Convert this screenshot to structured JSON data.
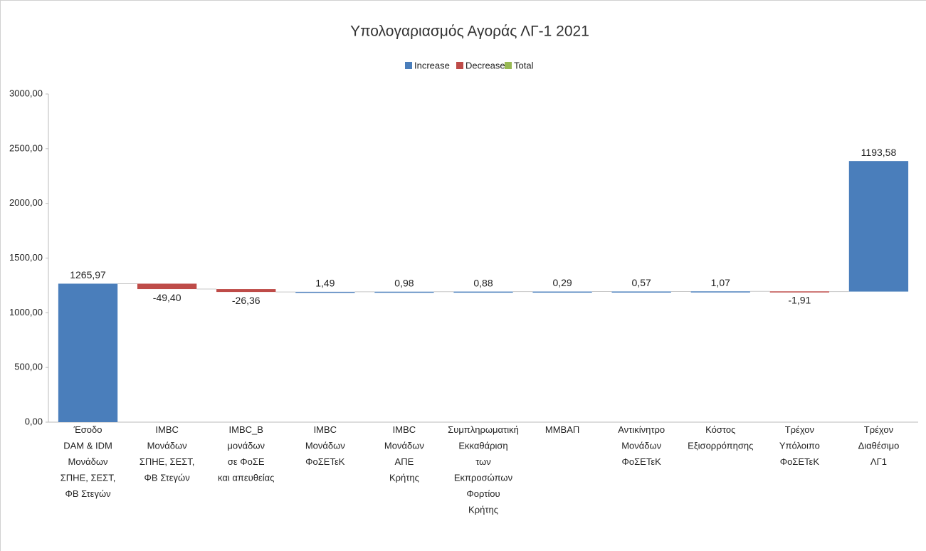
{
  "chart_data": {
    "type": "waterfall",
    "title": "Υπολογαριασμός Αγοράς ΛΓ-1 2021",
    "legend": [
      {
        "name": "Increase",
        "color": "#4a7ebb"
      },
      {
        "name": "Decrease",
        "color": "#be4b48"
      },
      {
        "name": "Total",
        "color": "#98b954"
      }
    ],
    "categories": [
      "Έσοδο\nDAM & IDM\nΜονάδων\nΣΠΗΕ, ΣΕΣΤ,\nΦΒ Στεγών",
      "IMBC\nΜονάδων\nΣΠΗΕ, ΣΕΣΤ,\nΦΒ Στεγών",
      "IMBC_B\nμονάδων\nσε ΦοΣΕ\nκαι απευθείας",
      "IMBC\nΜονάδων\nΦοΣΕΤεΚ",
      "IMBC\nΜονάδων\nΑΠΕ\nΚρήτης",
      "Συμπληρωματική\nΕκκαθάριση\nτων\nΕκπροσώπων\nΦορτίου\nΚρήτης",
      "ΜΜΒΑΠ",
      "Αντικίνητρο\nΜονάδων\nΦοΣΕΤεΚ",
      "Κόστος\nΕξισορρόπησης",
      "Τρέχον\nΥπόλοιπο\nΦοΣΕΤεΚ",
      "Τρέχον\nΔιαθέσιμο\nΛΓ1"
    ],
    "values": [
      1265.97,
      -49.4,
      -26.36,
      1.49,
      0.98,
      0.88,
      0.29,
      0.57,
      1.07,
      -1.91,
      1193.58
    ],
    "value_labels": [
      "1265,97",
      "-49,40",
      "-26,36",
      "1,49",
      "0,98",
      "0,88",
      "0,29",
      "0,57",
      "1,07",
      "-1,91",
      "1193,58"
    ],
    "ylim": [
      0,
      3000
    ],
    "yticks": [
      {
        "value": 0,
        "label": "0,00"
      },
      {
        "value": 500,
        "label": "500,00"
      },
      {
        "value": 1000,
        "label": "1000,00"
      },
      {
        "value": 1500,
        "label": "1500,00"
      },
      {
        "value": 2000,
        "label": "2000,00"
      },
      {
        "value": 2500,
        "label": "2500,00"
      },
      {
        "value": 3000,
        "label": "3000,00"
      }
    ]
  }
}
